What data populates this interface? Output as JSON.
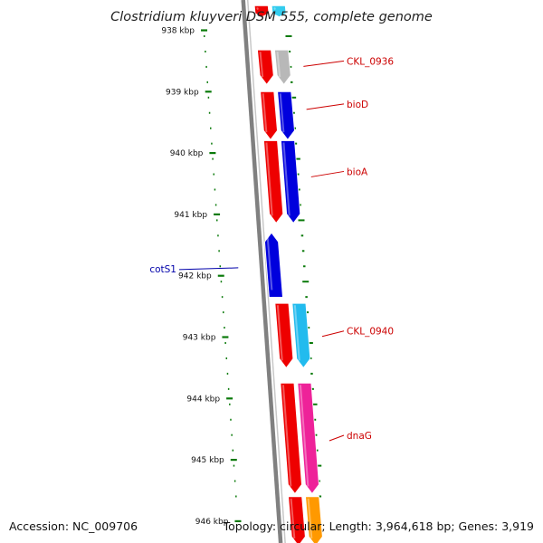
{
  "title": "Clostridium kluyveri DSM 555, complete genome",
  "accession": "Accession: NC_009706",
  "summary": "Topology: circular; Length: 3,964,618 bp; Genes: 3,919",
  "colors": {
    "background": "#ffffff",
    "backbone": "#808080",
    "tick": "#0a7a0a",
    "label_red": "#cc0000",
    "label_blue": "#0000aa"
  },
  "ticks": [
    {
      "label": "938 kbp",
      "kbp": 938
    },
    {
      "label": "939 kbp",
      "kbp": 939
    },
    {
      "label": "940 kbp",
      "kbp": 940
    },
    {
      "label": "941 kbp",
      "kbp": 941
    },
    {
      "label": "942 kbp",
      "kbp": 942
    },
    {
      "label": "943 kbp",
      "kbp": 943
    },
    {
      "label": "944 kbp",
      "kbp": 944
    },
    {
      "label": "945 kbp",
      "kbp": 945
    },
    {
      "label": "946 kbp",
      "kbp": 946
    }
  ],
  "gene_labels": [
    {
      "name": "CKL_0936",
      "kbp": 938.5,
      "color": "#cc0000",
      "side": "right"
    },
    {
      "name": "bioD",
      "kbp": 939.2,
      "color": "#cc0000",
      "side": "right"
    },
    {
      "name": "bioA",
      "kbp": 940.3,
      "color": "#cc0000",
      "side": "right"
    },
    {
      "name": "cotS1",
      "kbp": 941.9,
      "color": "#0000aa",
      "side": "left"
    },
    {
      "name": "CKL_0940",
      "kbp": 942.9,
      "color": "#cc0000",
      "side": "right"
    },
    {
      "name": "dnaG",
      "kbp": 944.6,
      "color": "#cc0000",
      "side": "right"
    }
  ],
  "features": [
    {
      "track": "cds",
      "strand": "+",
      "start": 937.6,
      "end": 937.78,
      "color": "#ee0000"
    },
    {
      "track": "rna",
      "strand": "+",
      "start": 937.6,
      "end": 937.78,
      "color": "#33ccee"
    },
    {
      "track": "cds",
      "strand": "+",
      "start": 938.32,
      "end": 938.88,
      "color": "#ee0000"
    },
    {
      "track": "rna",
      "strand": "+",
      "start": 938.32,
      "end": 938.88,
      "color": "#b8b8b8"
    },
    {
      "track": "cds",
      "strand": "+",
      "start": 939.0,
      "end": 939.78,
      "color": "#ee0000"
    },
    {
      "track": "rna",
      "strand": "+",
      "start": 939.0,
      "end": 939.78,
      "color": "#0000dd"
    },
    {
      "track": "cds",
      "strand": "+",
      "start": 939.8,
      "end": 941.14,
      "color": "#ee0000"
    },
    {
      "track": "rna",
      "strand": "+",
      "start": 939.8,
      "end": 941.14,
      "color": "#0000dd"
    },
    {
      "track": "cds",
      "strand": "-",
      "start": 941.3,
      "end": 942.35,
      "color": "#0000dd"
    },
    {
      "track": "cds",
      "strand": "+",
      "start": 942.45,
      "end": 943.5,
      "color": "#ee0000"
    },
    {
      "track": "rna",
      "strand": "+",
      "start": 942.45,
      "end": 943.5,
      "color": "#22bbee"
    },
    {
      "track": "cds",
      "strand": "+",
      "start": 943.75,
      "end": 945.55,
      "color": "#ee0000"
    },
    {
      "track": "rna",
      "strand": "+",
      "start": 943.75,
      "end": 945.55,
      "color": "#ee2299"
    },
    {
      "track": "cds",
      "strand": "+",
      "start": 945.6,
      "end": 946.4,
      "color": "#ee0000"
    },
    {
      "track": "rna",
      "strand": "+",
      "start": 945.6,
      "end": 946.4,
      "color": "#ff9900"
    }
  ]
}
